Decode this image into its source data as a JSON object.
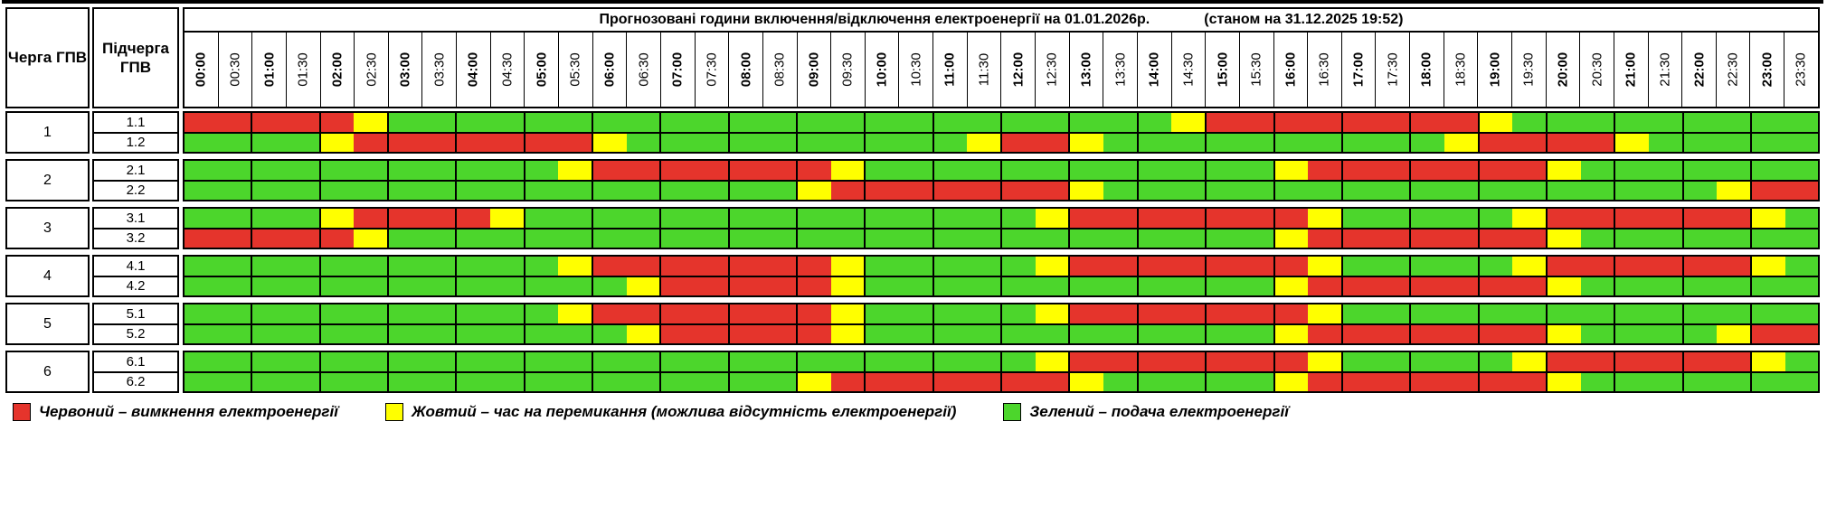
{
  "title": {
    "main": "Прогнозовані години включення/відключення електроенергії на 01.01.2026р.",
    "asof": "(станом на 31.12.2025 19:52)"
  },
  "headers": {
    "queue": "Черга ГПВ",
    "subqueue": "Підчерга ГПВ"
  },
  "times": [
    "00:00",
    "00:30",
    "01:00",
    "01:30",
    "02:00",
    "02:30",
    "03:00",
    "03:30",
    "04:00",
    "04:30",
    "05:00",
    "05:30",
    "06:00",
    "06:30",
    "07:00",
    "07:30",
    "08:00",
    "08:30",
    "09:00",
    "09:30",
    "10:00",
    "10:30",
    "11:00",
    "11:30",
    "12:00",
    "12:30",
    "13:00",
    "13:30",
    "14:00",
    "14:30",
    "15:00",
    "15:30",
    "16:00",
    "16:30",
    "17:00",
    "17:30",
    "18:00",
    "18:30",
    "19:00",
    "19:30",
    "20:00",
    "20:30",
    "21:00",
    "21:30",
    "22:00",
    "22:30",
    "23:00",
    "23:30"
  ],
  "colors": {
    "R": "#e5342c",
    "Y": "#ffff00",
    "G": "#4cd62c"
  },
  "blocks": [
    {
      "queue": "1",
      "rows": [
        {
          "label": "1.1",
          "pattern": "RRRRRYGGGGGGGGGGGGGGGGGGGGGGGYRRRRRRRRYGGGGGGGGG"
        },
        {
          "label": "1.2",
          "pattern": "GGGGYRRRRRRRYGGGGGGGGGGYRRYGGGGGGGGGGYRRRRYGGGGG"
        }
      ]
    },
    {
      "queue": "2",
      "rows": [
        {
          "label": "2.1",
          "pattern": "GGGGGGGGGGGYRRRRRRRYGGGGGGGGGGGGYRRRRRRRYGGGGGGG"
        },
        {
          "label": "2.2",
          "pattern": "GGGGGGGGGGGGGGGGGGYRRRRRRRYGGGGGGGGGGGGGGGGGGYRR"
        }
      ]
    },
    {
      "queue": "3",
      "rows": [
        {
          "label": "3.1",
          "pattern": "GGGGYRRRRYGGGGGGGGGGGGGGGYRRRRRRRYGGGGGYRRRRRRYG"
        },
        {
          "label": "3.2",
          "pattern": "RRRRRYGGGGGGGGGGGGGGGGGGGGGGGGGGYRRRRRRRYGGGGGGG"
        }
      ]
    },
    {
      "queue": "4",
      "rows": [
        {
          "label": "4.1",
          "pattern": "GGGGGGGGGGGYRRRRRRRYGGGGGYRRRRRRRYGGGGGYRRRRRRYG"
        },
        {
          "label": "4.2",
          "pattern": "GGGGGGGGGGGGGYRRRRRYGGGGGGGGGGGGYRRRRRRRYGGGGGGG"
        }
      ]
    },
    {
      "queue": "5",
      "rows": [
        {
          "label": "5.1",
          "pattern": "GGGGGGGGGGGYRRRRRRRYGGGGGYRRRRRRRYGGGGGGGGGGGGGG"
        },
        {
          "label": "5.2",
          "pattern": "GGGGGGGGGGGGGYRRRRRYGGGGGGGGGGGGYRRRRRRRYGGGGYRR"
        }
      ]
    },
    {
      "queue": "6",
      "rows": [
        {
          "label": "6.1",
          "pattern": "GGGGGGGGGGGGGGGGGGGGGGGGGYRRRRRRRYGGGGGYRRRRRRYG"
        },
        {
          "label": "6.2",
          "pattern": "GGGGGGGGGGGGGGGGGGYRRRRRRRYGGGGGYRRRRRRRYGGGGGGG"
        }
      ]
    }
  ],
  "legend": [
    {
      "key": "R",
      "label": "Червоний – вимкнення електроенергії"
    },
    {
      "key": "Y",
      "label": "Жовтий – час на перемикання (можлива відсутність електроенергії)"
    },
    {
      "key": "G",
      "label": "Зелений – подача електроенергії"
    }
  ]
}
